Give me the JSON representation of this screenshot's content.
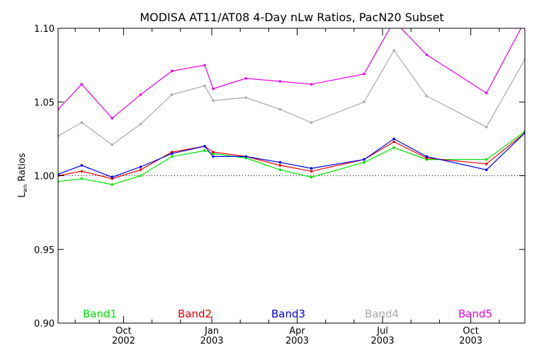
{
  "chart_data": {
    "type": "line",
    "title": "MODISA AT11/AT08 4-Day nLw Ratios, PacN20 Subset",
    "ylabel": {
      "main": "L",
      "sub": "wn",
      "tail": " Ratios"
    },
    "xlim": [
      0,
      16.4
    ],
    "ylim": [
      0.9,
      1.1
    ],
    "yticks": [
      {
        "v": 0.9,
        "label": "0.90"
      },
      {
        "v": 0.95,
        "label": "0.95"
      },
      {
        "v": 1.0,
        "label": "1.00"
      },
      {
        "v": 1.05,
        "label": "1.05"
      },
      {
        "v": 1.1,
        "label": "1.10"
      }
    ],
    "xticks": [
      {
        "v": 2.3,
        "label": "Oct",
        "year": "2002"
      },
      {
        "v": 5.4,
        "label": "Jan",
        "year": "2003"
      },
      {
        "v": 8.4,
        "label": "Apr",
        "year": "2003"
      },
      {
        "v": 11.4,
        "label": "Jul",
        "year": "2003"
      },
      {
        "v": 14.5,
        "label": "Oct",
        "year": "2003"
      }
    ],
    "minor_ticks": [
      0.6,
      1.45,
      3.3,
      4.3,
      6.4,
      7.4,
      9.4,
      10.4,
      12.4,
      13.4,
      15.5
    ],
    "reference_line": 1.0,
    "x": [
      0.0,
      0.83,
      1.9,
      2.9,
      4.0,
      5.15,
      5.45,
      6.6,
      7.8,
      8.9,
      10.75,
      11.8,
      12.95,
      15.05,
      16.4
    ],
    "series": [
      {
        "name": "Band1",
        "color": "#00e600",
        "values": [
          0.996,
          0.998,
          0.994,
          1.0,
          1.013,
          1.017,
          1.015,
          1.012,
          1.004,
          0.999,
          1.009,
          1.019,
          1.011,
          1.011,
          1.03
        ]
      },
      {
        "name": "Band2",
        "color": "#e60000",
        "values": [
          1.0,
          1.003,
          0.998,
          1.004,
          1.016,
          1.02,
          1.016,
          1.013,
          1.007,
          1.003,
          1.011,
          1.023,
          1.012,
          1.008,
          1.029
        ]
      },
      {
        "name": "Band3",
        "color": "#0000e6",
        "values": [
          1.001,
          1.007,
          0.999,
          1.006,
          1.015,
          1.02,
          1.013,
          1.013,
          1.009,
          1.005,
          1.011,
          1.025,
          1.013,
          1.004,
          1.029
        ]
      },
      {
        "name": "Band4",
        "color": "#aaaaaa",
        "values": [
          1.027,
          1.036,
          1.021,
          1.035,
          1.055,
          1.061,
          1.051,
          1.053,
          1.045,
          1.036,
          1.05,
          1.085,
          1.054,
          1.033,
          1.079
        ]
      },
      {
        "name": "Band5",
        "color": "#e600e6",
        "values": [
          1.045,
          1.062,
          1.039,
          1.055,
          1.071,
          1.075,
          1.059,
          1.066,
          1.064,
          1.062,
          1.069,
          1.105,
          1.082,
          1.056,
          1.105
        ]
      }
    ]
  }
}
